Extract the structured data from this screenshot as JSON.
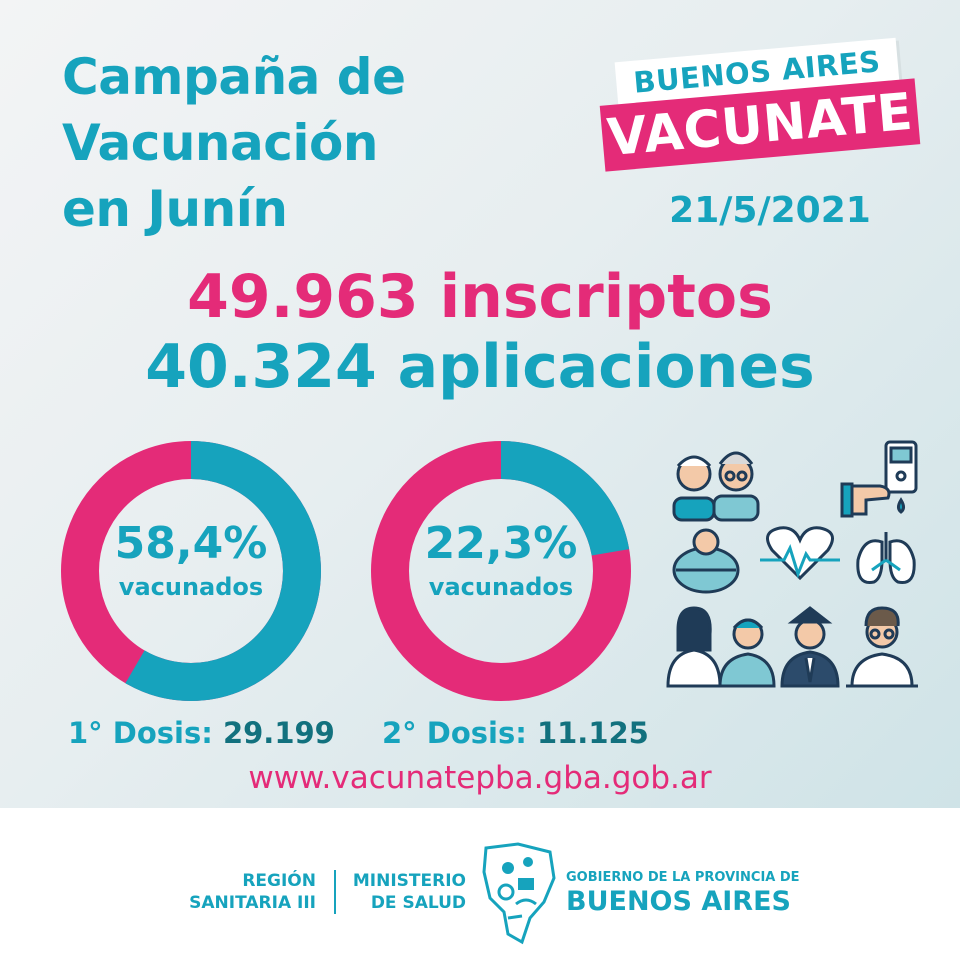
{
  "title": {
    "line1": "Campaña de",
    "line2": "Vacunación",
    "line3": "en Junín"
  },
  "brand": {
    "top": "BUENOS AIRES",
    "bottom": "VACUNATE"
  },
  "date": "21/5/2021",
  "stats": {
    "inscriptos": "49.963 inscriptos",
    "aplicaciones": "40.324 aplicaciones"
  },
  "donuts": [
    {
      "pct": "58,4%",
      "label": "vacunados",
      "fraction": 0.584,
      "dose_label": "1° Dosis:",
      "dose_value": "29.199"
    },
    {
      "pct": "22,3%",
      "label": "vacunados",
      "fraction": 0.223,
      "dose_label": "2° Dosis:",
      "dose_value": "11.125"
    }
  ],
  "url": "www.vacunatepba.gba.gob.ar",
  "colors": {
    "teal": "#16a3bd",
    "pink": "#e42b78",
    "dark_teal": "#12717e",
    "icon_navy": "#1f3b57"
  },
  "icons": [
    "elderly-couple-icon",
    "glucose-meter-icon",
    "obese-person-icon",
    "heartbeat-icon",
    "lungs-icon",
    "health-workers-icon",
    "police-officer-icon",
    "teacher-icon"
  ],
  "footer": {
    "region_line1": "REGIÓN",
    "region_line2": "SANITARIA III",
    "ministry_line1": "MINISTERIO",
    "ministry_line2": "DE SALUD",
    "gov_line1": "GOBIERNO DE LA PROVINCIA DE",
    "gov_line2": "BUENOS AIRES"
  }
}
